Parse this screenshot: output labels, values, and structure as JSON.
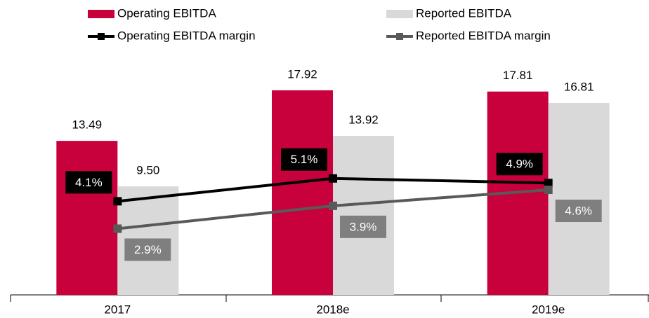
{
  "chart_data": {
    "type": "bar",
    "categories": [
      "2017",
      "2018e",
      "2019e"
    ],
    "ylim": [
      0,
      20
    ],
    "y2lim": [
      0,
      10
    ],
    "series": [
      {
        "name": "Operating EBITDA",
        "type": "bar",
        "color": "#c8003c",
        "values": [
          13.49,
          17.92,
          17.81
        ]
      },
      {
        "name": "Reported EBITDA",
        "type": "bar",
        "color": "#d9d9d9",
        "values": [
          9.5,
          13.92,
          16.81
        ],
        "value_labels": [
          "9.50",
          "13.92",
          "16.81"
        ]
      },
      {
        "name": "Operating EBITDA margin",
        "type": "line",
        "axis": "y2",
        "color": "#000000",
        "values": [
          4.1,
          5.1,
          4.9
        ],
        "value_labels": [
          "4.1%",
          "5.1%",
          "4.9%"
        ]
      },
      {
        "name": "Reported EBITDA margin",
        "type": "line",
        "axis": "y2",
        "color": "#595959",
        "label_color": "#7f7f7f",
        "values": [
          2.9,
          3.9,
          4.6
        ],
        "value_labels": [
          "2.9%",
          "3.9%",
          "4.6%"
        ]
      }
    ]
  }
}
